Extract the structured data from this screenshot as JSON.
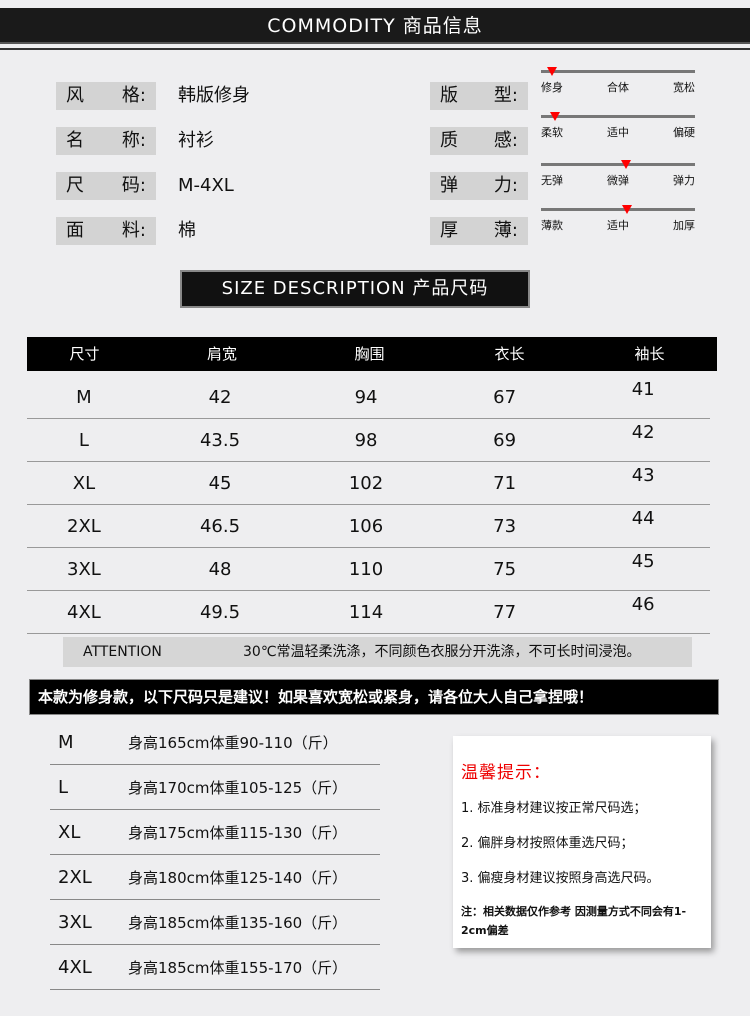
{
  "header": {
    "title": "COMMODITY 商品信息"
  },
  "info_left": [
    {
      "label_a": "风",
      "label_b": "格:",
      "value": "韩版修身"
    },
    {
      "label_a": "名",
      "label_b": "称:",
      "value": "衬衫"
    },
    {
      "label_a": "尺",
      "label_b": "码:",
      "value": "M-4XL"
    },
    {
      "label_a": "面",
      "label_b": "料:",
      "value": "棉"
    }
  ],
  "info_right": [
    {
      "label_a": "版",
      "label_b": "型:",
      "ticks": [
        "修身",
        "合体",
        "宽松"
      ],
      "level_percent": 7
    },
    {
      "label_a": "质",
      "label_b": "感:",
      "ticks": [
        "柔软",
        "适中",
        "偏硬"
      ],
      "level_percent": 9
    },
    {
      "label_a": "弹",
      "label_b": "力:",
      "ticks": [
        "无弹",
        "微弹",
        "弹力"
      ],
      "level_percent": 55
    },
    {
      "label_a": "厚",
      "label_b": "薄:",
      "ticks": [
        "薄款",
        "适中",
        "加厚"
      ],
      "level_percent": 56
    }
  ],
  "size_section": {
    "title": "SIZE DESCRIPTION 产品尺码"
  },
  "size_table": {
    "headers": [
      "尺寸",
      "肩宽",
      "胸围",
      "衣长",
      "袖长"
    ],
    "rows": [
      [
        "M",
        "42",
        "94",
        "67",
        "41"
      ],
      [
        "L",
        "43.5",
        "98",
        "69",
        "42"
      ],
      [
        "XL",
        "45",
        "102",
        "71",
        "43"
      ],
      [
        "2XL",
        "46.5",
        "106",
        "73",
        "44"
      ],
      [
        "3XL",
        "48",
        "110",
        "75",
        "45"
      ],
      [
        "4XL",
        "49.5",
        "114",
        "77",
        "46"
      ]
    ]
  },
  "attention": {
    "label": "ATTENTION",
    "text": "30℃常温轻柔洗涤，不同颜色衣服分开洗涤，不可长时间浸泡。"
  },
  "fit_note": "本款为修身款，以下尺码只是建议！如果喜欢宽松或紧身，请各位大人自己拿捏哦！",
  "height_weight": [
    {
      "size": "M",
      "text": "身高165cm体重90-110（斤）"
    },
    {
      "size": "L",
      "text": "身高170cm体重105-125（斤）"
    },
    {
      "size": "XL",
      "text": "身高175cm体重115-130（斤）"
    },
    {
      "size": "2XL",
      "text": "身高180cm体重125-140（斤）"
    },
    {
      "size": "3XL",
      "text": "身高185cm体重135-160（斤）"
    },
    {
      "size": "4XL",
      "text": "身高185cm体重155-170（斤）"
    }
  ],
  "tips": {
    "title": "温馨提示：",
    "items": [
      "1. 标准身材建议按正常尺码选；",
      "2. 偏胖身材按照体重选尺码；",
      "3. 偏瘦身材建议按照身高选尺码。"
    ],
    "note": "注：相关数据仅作参考 因测量方式不同会有1-2cm偏差"
  },
  "colors": {
    "marker": "#ff0000",
    "tips_title": "#ee0000",
    "bar": "#111111"
  }
}
